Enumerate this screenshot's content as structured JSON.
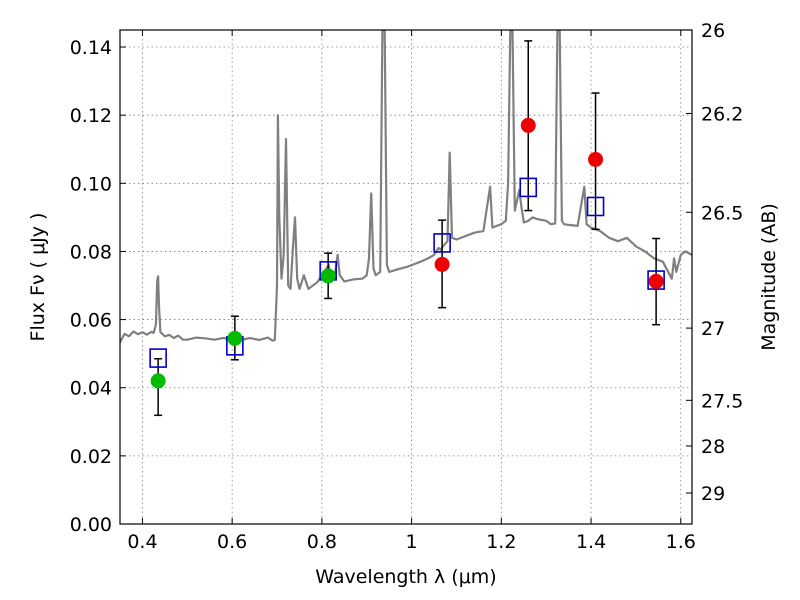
{
  "chart_data": {
    "type": "scatter",
    "xlabel": "Wavelength  λ (μm)",
    "ylabel": "Flux  Fν  ( μJy )",
    "y2label": "Magnitude (AB)",
    "xlim": [
      0.35,
      1.625
    ],
    "ylim": [
      0.0,
      0.145
    ],
    "grid": true,
    "x_ticks": [
      0.4,
      0.6,
      0.8,
      1.0,
      1.2,
      1.4,
      1.6
    ],
    "x_tick_labels": [
      "0.4",
      "0.6",
      "0.8",
      "1",
      "1.2",
      "1.4",
      "1.6"
    ],
    "y_ticks": [
      0.0,
      0.02,
      0.04,
      0.06,
      0.08,
      0.1,
      0.12,
      0.14
    ],
    "y_tick_labels": [
      "0.00",
      "0.02",
      "0.04",
      "0.06",
      "0.08",
      "0.10",
      "0.12",
      "0.14"
    ],
    "y2_ticks": [
      {
        "label": "26",
        "flux": 0.145
      },
      {
        "label": "26.2",
        "flux": 0.1205
      },
      {
        "label": "26.5",
        "flux": 0.0915
      },
      {
        "label": "27",
        "flux": 0.0575
      },
      {
        "label": "27.5",
        "flux": 0.0363
      },
      {
        "label": "28",
        "flux": 0.0229
      },
      {
        "label": "29",
        "flux": 0.0091
      }
    ],
    "colors": {
      "spectrum": "#808080",
      "green_points": "#00bb00",
      "red_points": "#ee0000",
      "model_squares": "#0000cc",
      "errorbars": "#000000"
    },
    "series": [
      {
        "marker": "circle-green",
        "points": [
          {
            "x": 0.435,
            "y": 0.042,
            "err_low": 0.0319,
            "err_high": 0.0485
          },
          {
            "x": 0.606,
            "y": 0.0545,
            "err_low": 0.0482,
            "err_high": 0.061
          },
          {
            "x": 0.814,
            "y": 0.0728,
            "err_low": 0.0662,
            "err_high": 0.0795
          }
        ]
      },
      {
        "marker": "circle-red",
        "points": [
          {
            "x": 1.068,
            "y": 0.0762,
            "err_low": 0.0635,
            "err_high": 0.0892
          },
          {
            "x": 1.26,
            "y": 0.117,
            "err_low": 0.092,
            "err_high": 0.1418
          },
          {
            "x": 1.41,
            "y": 0.107,
            "err_low": 0.0865,
            "err_high": 0.1265
          },
          {
            "x": 1.545,
            "y": 0.0712,
            "err_low": 0.0585,
            "err_high": 0.0838
          }
        ]
      },
      {
        "marker": "square-open-blue",
        "points": [
          {
            "x": 0.435,
            "y": 0.0487
          },
          {
            "x": 0.606,
            "y": 0.0523
          },
          {
            "x": 0.814,
            "y": 0.0743
          },
          {
            "x": 1.068,
            "y": 0.0825
          },
          {
            "x": 1.26,
            "y": 0.0988
          },
          {
            "x": 1.41,
            "y": 0.0932
          },
          {
            "x": 1.545,
            "y": 0.0716
          }
        ]
      },
      {
        "marker": "line-gray",
        "points": [
          [
            0.35,
            0.0533
          ],
          [
            0.36,
            0.0558
          ],
          [
            0.37,
            0.0551
          ],
          [
            0.38,
            0.0565
          ],
          [
            0.39,
            0.0557
          ],
          [
            0.4,
            0.0563
          ],
          [
            0.41,
            0.0556
          ],
          [
            0.42,
            0.0564
          ],
          [
            0.425,
            0.0561
          ],
          [
            0.43,
            0.0585
          ],
          [
            0.433,
            0.0715
          ],
          [
            0.435,
            0.0727
          ],
          [
            0.437,
            0.064
          ],
          [
            0.44,
            0.0563
          ],
          [
            0.45,
            0.0551
          ],
          [
            0.46,
            0.0555
          ],
          [
            0.47,
            0.0546
          ],
          [
            0.48,
            0.0553
          ],
          [
            0.49,
            0.0541
          ],
          [
            0.5,
            0.0541
          ],
          [
            0.52,
            0.0547
          ],
          [
            0.54,
            0.0545
          ],
          [
            0.56,
            0.0541
          ],
          [
            0.58,
            0.0546
          ],
          [
            0.6,
            0.0542
          ],
          [
            0.62,
            0.054
          ],
          [
            0.64,
            0.0546
          ],
          [
            0.66,
            0.054
          ],
          [
            0.68,
            0.0547
          ],
          [
            0.69,
            0.0538
          ],
          [
            0.695,
            0.054
          ],
          [
            0.7,
            0.07
          ],
          [
            0.702,
            0.12
          ],
          [
            0.705,
            0.09
          ],
          [
            0.71,
            0.072
          ],
          [
            0.715,
            0.079
          ],
          [
            0.72,
            0.113
          ],
          [
            0.725,
            0.07
          ],
          [
            0.73,
            0.069
          ],
          [
            0.735,
            0.08
          ],
          [
            0.74,
            0.09
          ],
          [
            0.745,
            0.072
          ],
          [
            0.75,
            0.069
          ],
          [
            0.755,
            0.071
          ],
          [
            0.76,
            0.073
          ],
          [
            0.77,
            0.069
          ],
          [
            0.78,
            0.07
          ],
          [
            0.79,
            0.071
          ],
          [
            0.8,
            0.073
          ],
          [
            0.81,
            0.075
          ],
          [
            0.815,
            0.076
          ],
          [
            0.82,
            0.073
          ],
          [
            0.83,
            0.074
          ],
          [
            0.835,
            0.079
          ],
          [
            0.84,
            0.073
          ],
          [
            0.85,
            0.0712
          ],
          [
            0.87,
            0.0718
          ],
          [
            0.89,
            0.072
          ],
          [
            0.9,
            0.073
          ],
          [
            0.905,
            0.078
          ],
          [
            0.91,
            0.097
          ],
          [
            0.915,
            0.075
          ],
          [
            0.92,
            0.073
          ],
          [
            0.93,
            0.074
          ],
          [
            0.935,
            0.145
          ],
          [
            0.94,
            0.145
          ],
          [
            0.945,
            0.076
          ],
          [
            0.95,
            0.074
          ],
          [
            0.97,
            0.0748
          ],
          [
            0.99,
            0.0755
          ],
          [
            1.0,
            0.076
          ],
          [
            1.02,
            0.077
          ],
          [
            1.04,
            0.0782
          ],
          [
            1.05,
            0.079
          ],
          [
            1.06,
            0.081
          ],
          [
            1.065,
            0.0805
          ],
          [
            1.07,
            0.0815
          ],
          [
            1.08,
            0.083
          ],
          [
            1.085,
            0.109
          ],
          [
            1.09,
            0.084
          ],
          [
            1.1,
            0.0835
          ],
          [
            1.12,
            0.0845
          ],
          [
            1.14,
            0.0855
          ],
          [
            1.16,
            0.086
          ],
          [
            1.175,
            0.099
          ],
          [
            1.18,
            0.087
          ],
          [
            1.19,
            0.0875
          ],
          [
            1.2,
            0.088
          ],
          [
            1.21,
            0.089
          ],
          [
            1.215,
            0.1
          ],
          [
            1.22,
            0.145
          ],
          [
            1.225,
            0.145
          ],
          [
            1.23,
            0.092
          ],
          [
            1.24,
            0.098
          ],
          [
            1.245,
            0.093
          ],
          [
            1.25,
            0.0885
          ],
          [
            1.26,
            0.089
          ],
          [
            1.27,
            0.09
          ],
          [
            1.28,
            0.0895
          ],
          [
            1.3,
            0.089
          ],
          [
            1.31,
            0.088
          ],
          [
            1.32,
            0.0882
          ],
          [
            1.325,
            0.145
          ],
          [
            1.33,
            0.145
          ],
          [
            1.335,
            0.089
          ],
          [
            1.34,
            0.088
          ],
          [
            1.35,
            0.0878
          ],
          [
            1.37,
            0.0875
          ],
          [
            1.385,
            0.099
          ],
          [
            1.39,
            0.088
          ],
          [
            1.4,
            0.087
          ],
          [
            1.42,
            0.086
          ],
          [
            1.44,
            0.084
          ],
          [
            1.46,
            0.083
          ],
          [
            1.48,
            0.084
          ],
          [
            1.5,
            0.0815
          ],
          [
            1.52,
            0.08
          ],
          [
            1.54,
            0.078
          ],
          [
            1.56,
            0.077
          ],
          [
            1.58,
            0.072
          ],
          [
            1.585,
            0.078
          ],
          [
            1.59,
            0.074
          ],
          [
            1.6,
            0.079
          ],
          [
            1.61,
            0.08
          ],
          [
            1.625,
            0.079
          ]
        ]
      }
    ]
  }
}
